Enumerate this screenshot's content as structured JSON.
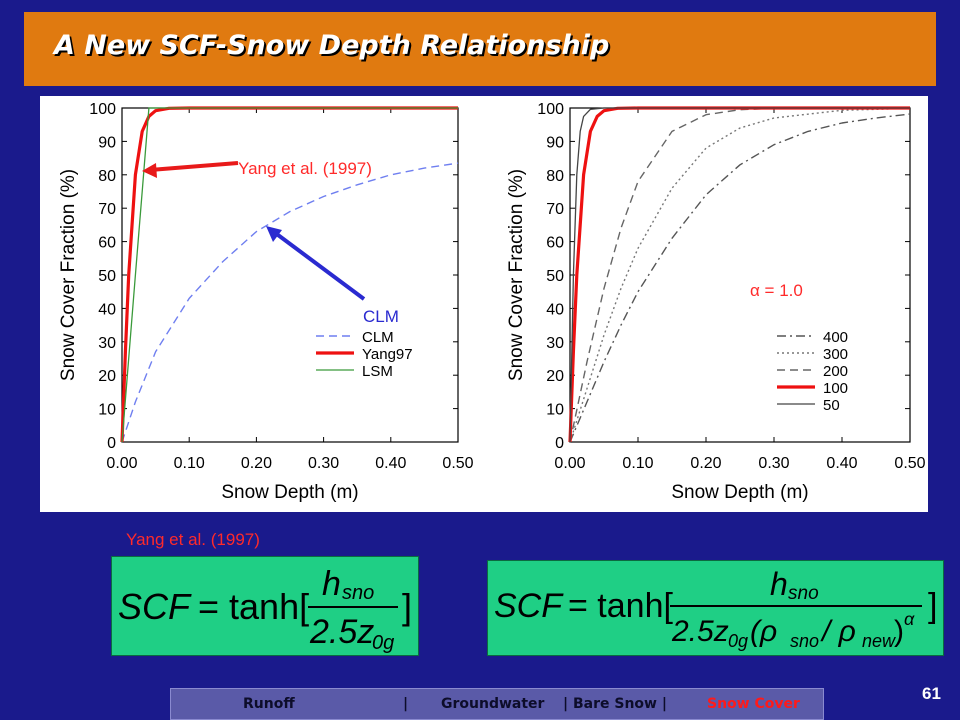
{
  "slide": {
    "title": "A New SCF-Snow Depth Relationship",
    "page_number": "61",
    "reference_label": "Yang et al. (1997)"
  },
  "footer": {
    "items": [
      "Runoff",
      "|",
      "Groundwater",
      "| Bare Snow |",
      "Snow Cover"
    ],
    "active": "Snow Cover"
  },
  "formulas": {
    "left": {
      "lhs": "SCF",
      "eq": "= tanh[",
      "num": "h",
      "num_sub": "sno",
      "den": "2.5z",
      "den_sub": "0g",
      "close": "]"
    },
    "right": {
      "lhs": "SCF",
      "eq": "= tanh[",
      "num": "h",
      "num_sub": "sno",
      "den": "2.5z",
      "den_sub": "0g",
      "den_paren": "(ρ",
      "rho_sub1": "sno",
      "slash": "/ ρ",
      "rho_sub2": "new",
      "den_close": ")",
      "exp": "α",
      "close": "]"
    }
  },
  "chart_data": [
    {
      "type": "line",
      "xlabel": "Snow Depth (m)",
      "ylabel": "Snow Cover Fraction (%)",
      "xlim": [
        0,
        0.5
      ],
      "ylim": [
        0,
        100
      ],
      "xticks": [
        "0.00",
        "0.10",
        "0.20",
        "0.30",
        "0.40",
        "0.50"
      ],
      "yticks": [
        "0",
        "10",
        "20",
        "30",
        "40",
        "50",
        "60",
        "70",
        "80",
        "90",
        "100"
      ],
      "legend_position": "bottom-right",
      "annotations": [
        {
          "text": "Yang et al. (1997)",
          "color": "#ff2a2a",
          "points_to": "Yang97"
        },
        {
          "text": "CLM",
          "color": "#2a2ad0",
          "points_to": "CLM"
        }
      ],
      "series": [
        {
          "name": "CLM",
          "style": "dashed",
          "color": "#6f7ff0",
          "x": [
            0,
            0.02,
            0.05,
            0.1,
            0.15,
            0.2,
            0.25,
            0.3,
            0.35,
            0.4,
            0.45,
            0.5
          ],
          "y": [
            0,
            12,
            27,
            43,
            54,
            63,
            69,
            73.5,
            77,
            80,
            82,
            83.5
          ]
        },
        {
          "name": "Yang97",
          "style": "solid-thick",
          "color": "#ee1111",
          "x": [
            0,
            0.005,
            0.01,
            0.02,
            0.03,
            0.04,
            0.05,
            0.07,
            0.1,
            0.15,
            0.2,
            0.3,
            0.4,
            0.5
          ],
          "y": [
            0,
            27,
            50,
            80,
            93,
            97.5,
            99.2,
            99.9,
            100,
            100,
            100,
            100,
            100,
            100
          ]
        },
        {
          "name": "LSM",
          "style": "solid-thin",
          "color": "#3a9a3a",
          "x": [
            0,
            0.01,
            0.02,
            0.03,
            0.04,
            0.05,
            0.1,
            0.2,
            0.3,
            0.4,
            0.5
          ],
          "y": [
            0,
            25,
            50,
            75,
            100,
            100,
            100,
            100,
            100,
            100,
            100
          ]
        }
      ]
    },
    {
      "type": "line",
      "xlabel": "Snow Depth (m)",
      "ylabel": "Snow Cover Fraction (%)",
      "xlim": [
        0,
        0.5
      ],
      "ylim": [
        0,
        100
      ],
      "xticks": [
        "0.00",
        "0.10",
        "0.20",
        "0.30",
        "0.40",
        "0.50"
      ],
      "yticks": [
        "0",
        "10",
        "20",
        "30",
        "40",
        "50",
        "60",
        "70",
        "80",
        "90",
        "100"
      ],
      "legend_position": "bottom-right",
      "annotations": [
        {
          "text": "α = 1.0",
          "color": "#ff2a2a"
        }
      ],
      "series": [
        {
          "name": "400",
          "style": "dash-dot",
          "color": "#555555",
          "x": [
            0,
            0.025,
            0.05,
            0.075,
            0.1,
            0.15,
            0.2,
            0.25,
            0.3,
            0.35,
            0.4,
            0.45,
            0.5
          ],
          "y": [
            0,
            12,
            24,
            35,
            45,
            61,
            74,
            83,
            89,
            93,
            95.5,
            97,
            98.2
          ]
        },
        {
          "name": "300",
          "style": "dotted",
          "color": "#777777",
          "x": [
            0,
            0.025,
            0.05,
            0.075,
            0.1,
            0.15,
            0.2,
            0.25,
            0.3,
            0.4,
            0.5
          ],
          "y": [
            0,
            16,
            32,
            46,
            58,
            76,
            88,
            94,
            97,
            99.3,
            99.9
          ]
        },
        {
          "name": "200",
          "style": "dashed",
          "color": "#666666",
          "x": [
            0,
            0.025,
            0.05,
            0.075,
            0.1,
            0.15,
            0.2,
            0.25,
            0.3,
            0.4,
            0.5
          ],
          "y": [
            0,
            24,
            46,
            64,
            78,
            93,
            98,
            99.5,
            99.9,
            100,
            100
          ]
        },
        {
          "name": "100",
          "style": "solid-thick",
          "color": "#ee1111",
          "x": [
            0,
            0.005,
            0.01,
            0.02,
            0.03,
            0.04,
            0.05,
            0.07,
            0.1,
            0.2,
            0.3,
            0.4,
            0.5
          ],
          "y": [
            0,
            27,
            50,
            80,
            93,
            97.5,
            99.2,
            99.9,
            100,
            100,
            100,
            100,
            100
          ]
        },
        {
          "name": "50",
          "style": "solid-thin",
          "color": "#444444",
          "x": [
            0,
            0.0025,
            0.005,
            0.01,
            0.015,
            0.02,
            0.03,
            0.05,
            0.1,
            0.2,
            0.3,
            0.4,
            0.5
          ],
          "y": [
            0,
            25,
            50,
            80,
            93,
            97.5,
            99.6,
            100,
            100,
            100,
            100,
            100,
            100
          ]
        }
      ]
    }
  ]
}
